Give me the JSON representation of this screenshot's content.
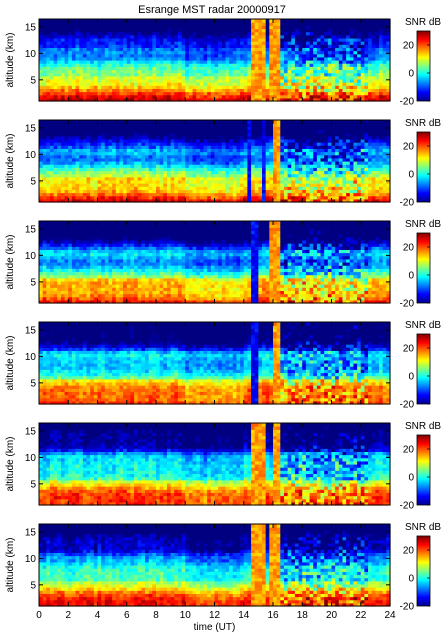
{
  "title": "Esrange MST radar 20000917",
  "chart_data": [
    {
      "type": "heatmap",
      "title": "Esrange MST radar 20000917",
      "xlabel": "time (UT)",
      "ylabel": "altitude (km)",
      "xlim": [
        0,
        24
      ],
      "ylim": [
        1,
        16.5
      ],
      "xticks": [
        0,
        2,
        4,
        6,
        8,
        10,
        12,
        14,
        16,
        18,
        20,
        22,
        24
      ],
      "yticks": [
        5,
        10,
        15
      ],
      "colorbar": {
        "label": "SNR dB",
        "range": [
          -20,
          30
        ],
        "ticks": [
          20,
          0,
          -20
        ]
      },
      "show_xticklabels": false,
      "pattern": {
        "bright_time_bands": [
          [
            14.5,
            15.5
          ],
          [
            15.8,
            16.6
          ]
        ],
        "noisy_span": [
          16.6,
          22.5
        ],
        "seed": 11
      }
    },
    {
      "type": "heatmap",
      "xlabel": "",
      "ylabel": "altitude (km)",
      "xlim": [
        0,
        24
      ],
      "ylim": [
        1,
        16.5
      ],
      "xticks": [
        0,
        2,
        4,
        6,
        8,
        10,
        12,
        14,
        16,
        18,
        20,
        22,
        24
      ],
      "yticks": [
        5,
        10,
        15
      ],
      "colorbar": {
        "label": "SNR dB",
        "range": [
          -20,
          30
        ],
        "ticks": [
          20,
          0,
          -20
        ]
      },
      "show_xticklabels": false,
      "pattern": {
        "bright_time_bands": [
          [
            15.9,
            16.5
          ]
        ],
        "dark_time_bands": [
          [
            14.2,
            14.6
          ],
          [
            15.2,
            15.5
          ]
        ],
        "noisy_span": [
          16.6,
          22.5
        ],
        "seed": 23
      }
    },
    {
      "type": "heatmap",
      "xlabel": "",
      "ylabel": "altitude (km)",
      "xlim": [
        0,
        24
      ],
      "ylim": [
        1,
        16.5
      ],
      "xticks": [
        0,
        2,
        4,
        6,
        8,
        10,
        12,
        14,
        16,
        18,
        20,
        22,
        24
      ],
      "yticks": [
        5,
        10,
        15
      ],
      "colorbar": {
        "label": "SNR dB",
        "range": [
          -20,
          30
        ],
        "ticks": [
          20,
          0,
          -20
        ]
      },
      "show_xticklabels": false,
      "pattern": {
        "bright_time_bands": [
          [
            15.7,
            16.4
          ]
        ],
        "dark_time_bands": [
          [
            14.6,
            15.0
          ]
        ],
        "noisy_span": [
          16.6,
          22.5
        ],
        "seed": 37
      }
    },
    {
      "type": "heatmap",
      "xlabel": "",
      "ylabel": "altitude (km)",
      "xlim": [
        0,
        24
      ],
      "ylim": [
        1,
        16.5
      ],
      "xticks": [
        0,
        2,
        4,
        6,
        8,
        10,
        12,
        14,
        16,
        18,
        20,
        22,
        24
      ],
      "yticks": [
        5,
        10,
        15
      ],
      "colorbar": {
        "label": "SNR dB",
        "range": [
          -20,
          30
        ],
        "ticks": [
          20,
          0,
          -20
        ]
      },
      "show_xticklabels": false,
      "pattern": {
        "bright_time_bands": [
          [
            15.9,
            16.5
          ]
        ],
        "dark_time_bands": [
          [
            14.6,
            15.0
          ]
        ],
        "noisy_span": [
          16.6,
          22.5
        ],
        "seed": 51
      }
    },
    {
      "type": "heatmap",
      "xlabel": "",
      "ylabel": "altitude (km)",
      "xlim": [
        0,
        24
      ],
      "ylim": [
        1,
        16.5
      ],
      "xticks": [
        0,
        2,
        4,
        6,
        8,
        10,
        12,
        14,
        16,
        18,
        20,
        22,
        24
      ],
      "yticks": [
        5,
        10,
        15
      ],
      "colorbar": {
        "label": "SNR dB",
        "range": [
          -20,
          30
        ],
        "ticks": [
          20,
          0,
          -20
        ]
      },
      "show_xticklabels": false,
      "pattern": {
        "bright_time_bands": [
          [
            14.6,
            15.6
          ],
          [
            15.9,
            16.6
          ]
        ],
        "noisy_span": [
          16.6,
          22.5
        ],
        "seed": 67
      }
    },
    {
      "type": "heatmap",
      "xlabel": "time (UT)",
      "ylabel": "altitude (km)",
      "xlim": [
        0,
        24
      ],
      "ylim": [
        1,
        16.5
      ],
      "xticks": [
        0,
        2,
        4,
        6,
        8,
        10,
        12,
        14,
        16,
        18,
        20,
        22,
        24
      ],
      "yticks": [
        5,
        10,
        15
      ],
      "colorbar": {
        "label": "SNR dB",
        "range": [
          -20,
          30
        ],
        "ticks": [
          20,
          0,
          -20
        ]
      },
      "show_xticklabels": true,
      "pattern": {
        "bright_time_bands": [
          [
            14.4,
            15.6
          ],
          [
            15.8,
            16.6
          ]
        ],
        "noisy_span": [
          16.6,
          22.5
        ],
        "seed": 83
      }
    }
  ]
}
